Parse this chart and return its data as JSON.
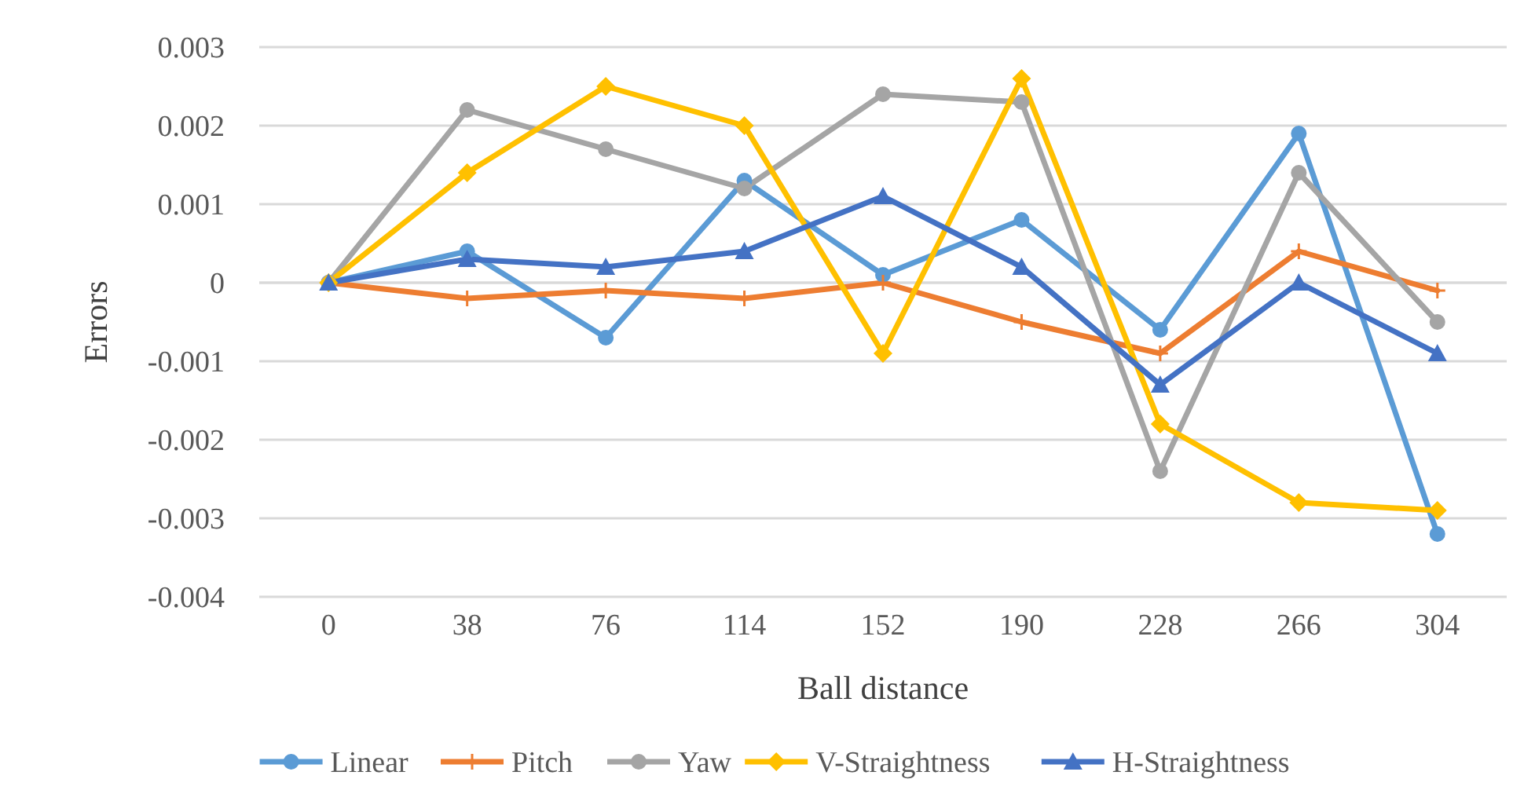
{
  "chart_data": {
    "type": "line",
    "xlabel": "Ball distance",
    "ylabel": "Errors",
    "categories": [
      "0",
      "38",
      "76",
      "114",
      "152",
      "190",
      "228",
      "266",
      "304"
    ],
    "series": [
      {
        "name": "Linear",
        "color": "#5b9bd5",
        "marker": "circle",
        "values": [
          0,
          0.0004,
          -0.0007,
          0.0013,
          0.0001,
          0.0008,
          -0.0006,
          0.0019,
          -0.0032
        ]
      },
      {
        "name": "Pitch",
        "color": "#ed7d31",
        "marker": "cross",
        "values": [
          0,
          -0.0002,
          -0.0001,
          -0.0002,
          0,
          -0.0005,
          -0.0009,
          0.0004,
          -0.0001
        ]
      },
      {
        "name": "Yaw",
        "color": "#a5a5a5",
        "marker": "circle",
        "values": [
          0,
          0.0022,
          0.0017,
          0.0012,
          0.0024,
          0.0023,
          -0.0024,
          0.0014,
          -0.0005
        ]
      },
      {
        "name": "V-Straightness",
        "color": "#ffc000",
        "marker": "diamond",
        "values": [
          0,
          0.0014,
          0.0025,
          0.002,
          -0.0009,
          0.0026,
          -0.0018,
          -0.0028,
          -0.0029
        ]
      },
      {
        "name": "H-Straightness",
        "color": "#4472c4",
        "marker": "triangle",
        "values": [
          0,
          0.0003,
          0.0002,
          0.0004,
          0.0011,
          0.0002,
          -0.0013,
          0,
          -0.0009
        ]
      }
    ],
    "ylim": [
      -0.004,
      0.003
    ],
    "yticks": [
      -0.004,
      -0.003,
      -0.002,
      -0.001,
      0,
      0.001,
      0.002,
      0.003
    ],
    "grid": "y",
    "legend": "bottom",
    "line_style": "solid"
  }
}
